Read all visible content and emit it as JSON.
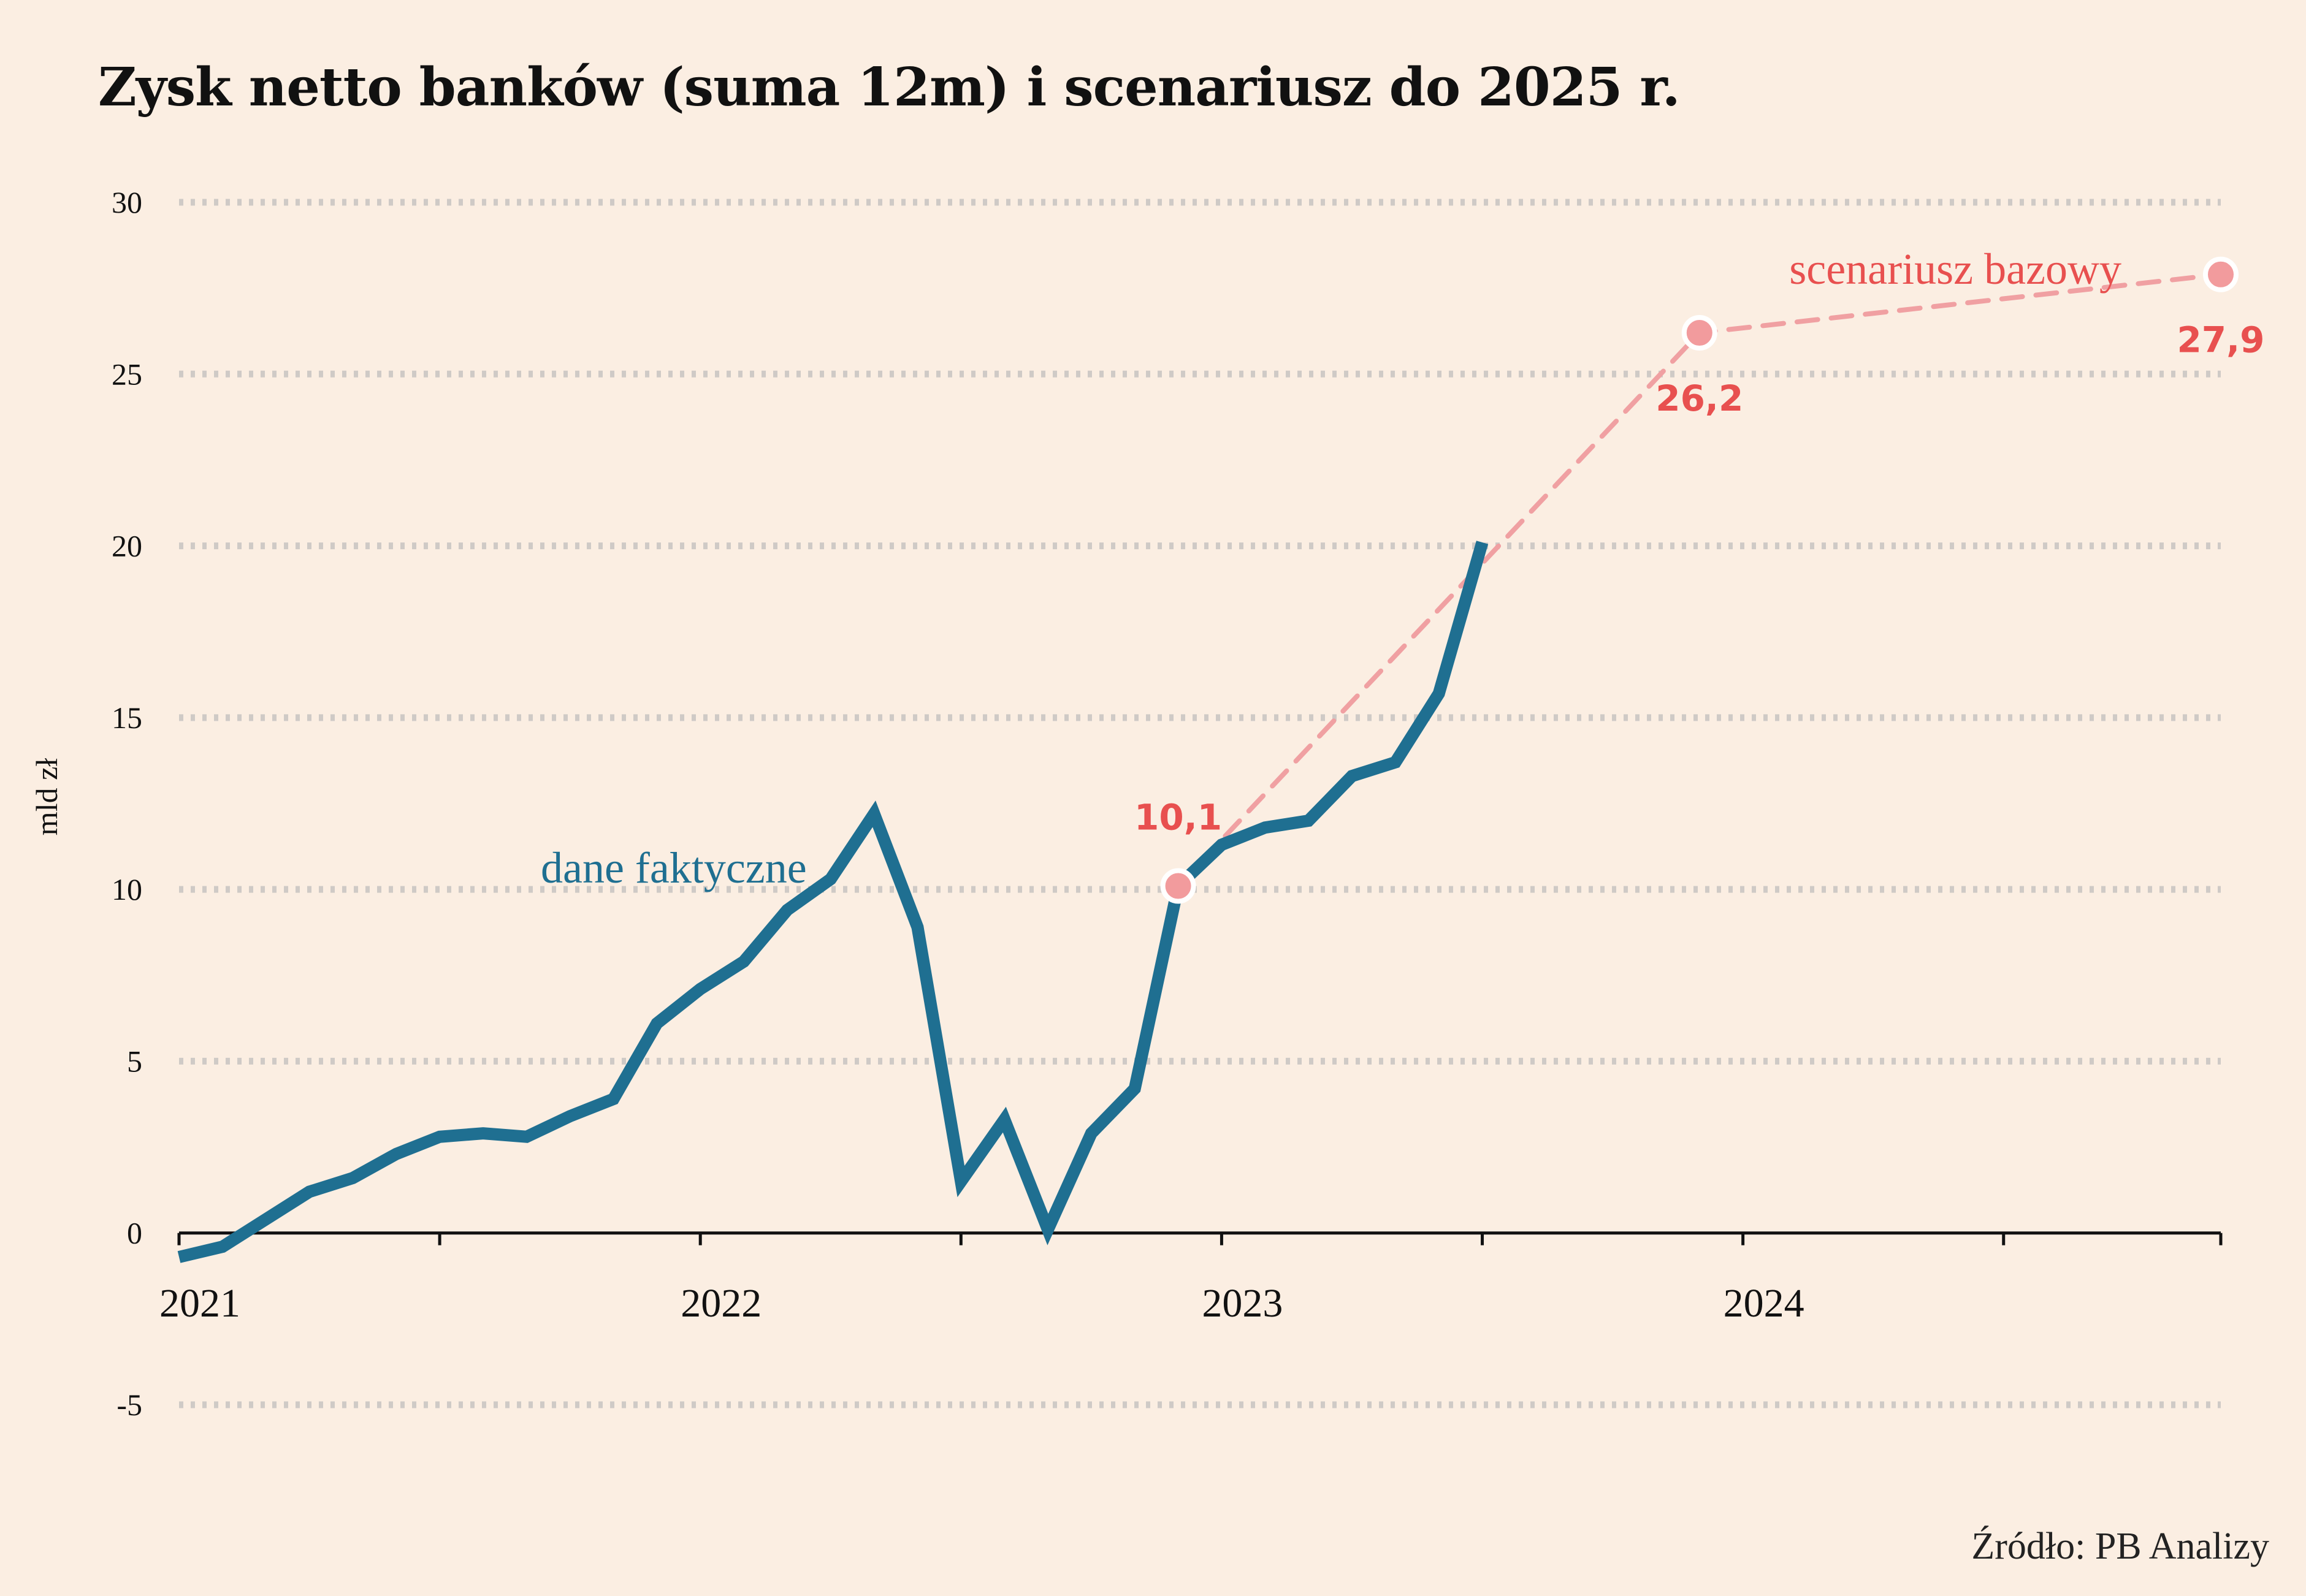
{
  "title": "Zysk netto banków (suma 12m) i scenariusz do 2025 r.",
  "source": "Źródło: PB Analizy",
  "colors": {
    "background": "#fbeee2",
    "actual": "#1f6f91",
    "scenario_line": "#f0a0a2",
    "scenario_point": "#f29b9d",
    "scenario_text": "#e8504f",
    "grid": "#cfcac6",
    "axis": "#111111"
  },
  "chart_data": {
    "type": "line",
    "title": "Zysk netto banków (suma 12m) i scenariusz do 2025 r.",
    "ylabel": "mld zł",
    "xlabel": "",
    "ylim": [
      -5,
      30
    ],
    "yticks": [
      -5,
      0,
      5,
      10,
      15,
      20,
      25,
      30
    ],
    "ytick_labels": [
      "-5",
      "0",
      "5",
      "10",
      "15",
      "20",
      "25",
      "30"
    ],
    "xlim": [
      "2021-01",
      "2024-12"
    ],
    "x_tick_labels": [
      {
        "x": "2021-01",
        "label": "2021"
      },
      {
        "x": "2022-01",
        "label": "2022"
      },
      {
        "x": "2023-01",
        "label": "2023"
      },
      {
        "x": "2024-01",
        "label": "2024"
      }
    ],
    "x_minor_ticks": [
      "2021-07",
      "2022-07",
      "2023-07",
      "2024-07",
      "2024-12"
    ],
    "grid": "horizontal dotted",
    "series": [
      {
        "name": "dane faktyczne",
        "style": "solid",
        "points": [
          {
            "x": "2021-01",
            "y": -0.7
          },
          {
            "x": "2021-02",
            "y": -0.4
          },
          {
            "x": "2021-03",
            "y": 0.4
          },
          {
            "x": "2021-04",
            "y": 1.2
          },
          {
            "x": "2021-05",
            "y": 1.6
          },
          {
            "x": "2021-06",
            "y": 2.3
          },
          {
            "x": "2021-07",
            "y": 2.8
          },
          {
            "x": "2021-08",
            "y": 2.9
          },
          {
            "x": "2021-09",
            "y": 2.8
          },
          {
            "x": "2021-10",
            "y": 3.4
          },
          {
            "x": "2021-11",
            "y": 3.9
          },
          {
            "x": "2021-12",
            "y": 6.1
          },
          {
            "x": "2022-01",
            "y": 7.1
          },
          {
            "x": "2022-02",
            "y": 7.9
          },
          {
            "x": "2022-03",
            "y": 9.4
          },
          {
            "x": "2022-04",
            "y": 10.3
          },
          {
            "x": "2022-05",
            "y": 12.2
          },
          {
            "x": "2022-06",
            "y": 8.9
          },
          {
            "x": "2022-07",
            "y": 1.5
          },
          {
            "x": "2022-08",
            "y": 3.3
          },
          {
            "x": "2022-09",
            "y": 0.1
          },
          {
            "x": "2022-10",
            "y": 2.9
          },
          {
            "x": "2022-11",
            "y": 4.2
          },
          {
            "x": "2022-12",
            "y": 10.1
          },
          {
            "x": "2023-01",
            "y": 11.3
          },
          {
            "x": "2023-02",
            "y": 11.8
          },
          {
            "x": "2023-03",
            "y": 12.0
          },
          {
            "x": "2023-04",
            "y": 13.3
          },
          {
            "x": "2023-05",
            "y": 13.7
          },
          {
            "x": "2023-06",
            "y": 15.7
          },
          {
            "x": "2023-07",
            "y": 20.1
          }
        ]
      },
      {
        "name": "scenariusz bazowy",
        "style": "dashed",
        "points": [
          {
            "x": "2022-12",
            "y": 10.1,
            "label": "10,1"
          },
          {
            "x": "2023-12",
            "y": 26.2,
            "label": "26,2"
          },
          {
            "x": "2024-12",
            "y": 27.9,
            "label": "27,9"
          }
        ]
      }
    ]
  }
}
